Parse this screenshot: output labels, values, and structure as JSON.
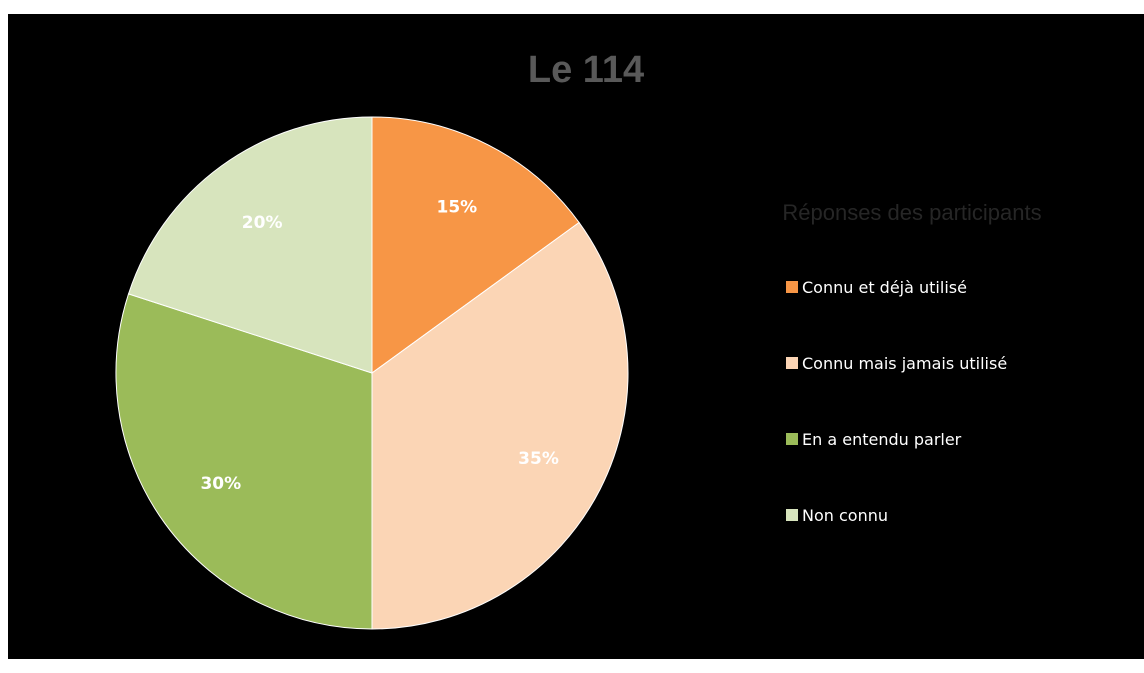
{
  "chart_data": {
    "type": "pie",
    "title": "Le 114",
    "legend_title": "Réponses des participants",
    "legend_position": "right",
    "categories": [
      "Connu et déjà utilisé",
      "Connu mais jamais utilisé",
      "En a entendu parler",
      "Non connu"
    ],
    "values": [
      15,
      35,
      30,
      20
    ],
    "data_labels": [
      "15%",
      "35%",
      "30%",
      "20%"
    ],
    "colors": [
      "#F79646",
      "#FBD5B5",
      "#9BBB59",
      "#D7E4BD"
    ],
    "start_angle": "12 o'clock",
    "direction": "clockwise"
  }
}
